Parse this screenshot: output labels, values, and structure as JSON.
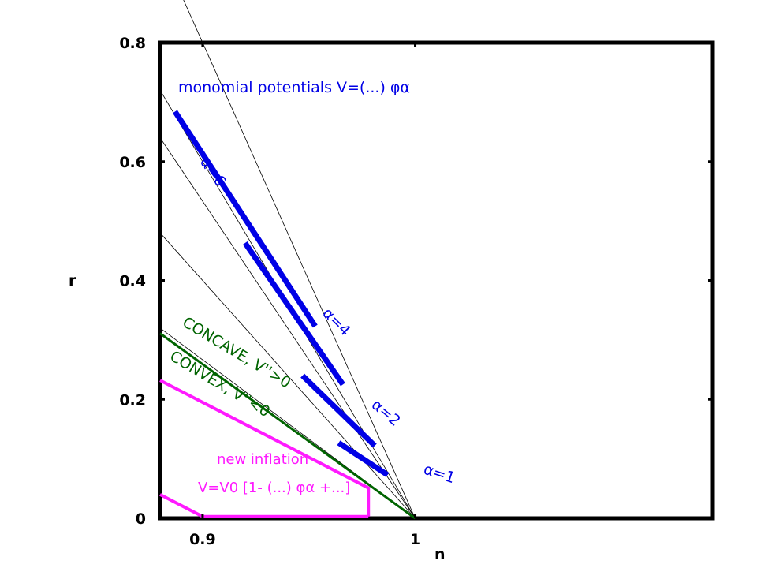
{
  "chart_data": {
    "type": "line",
    "xlabel": "n",
    "ylabel": "r",
    "xlim": [
      0.88,
      1.14
    ],
    "ylim": [
      0,
      0.8
    ],
    "x_ticks": [
      {
        "value": 0.9,
        "label": "0.9"
      },
      {
        "value": 1.0,
        "label": "1"
      }
    ],
    "y_ticks": [
      {
        "value": 0,
        "label": "0"
      },
      {
        "value": 0.2,
        "label": "0.2"
      },
      {
        "value": 0.4,
        "label": "0.4"
      },
      {
        "value": 0.6,
        "label": "0.6"
      },
      {
        "value": 0.8,
        "label": "0.8"
      }
    ],
    "grid": false,
    "annotations": {
      "monomial": "monomial potentials V=(...) φα",
      "alpha6": "α=6",
      "alpha4": "α=4",
      "alpha2": "α=2",
      "alpha1": "α=1",
      "concave": "CONCAVE, V''>0",
      "convex": "CONVEX, V''<0",
      "new_inflation_title": "new inflation",
      "new_inflation_formula": "V=V0 [1- (...) φα +...]"
    },
    "thin_lines": [
      {
        "name": "r=8(1-n)",
        "points": [
          [
            0.88,
            0.96
          ],
          [
            1.0,
            0
          ]
        ]
      },
      {
        "name": "α=6 line",
        "points": [
          [
            0.88,
            0.72
          ],
          [
            1.0,
            0
          ]
        ]
      },
      {
        "name": "α=4 line",
        "points": [
          [
            0.88,
            0.64
          ],
          [
            1.0,
            0
          ]
        ]
      },
      {
        "name": "α=2 line",
        "points": [
          [
            0.88,
            0.48
          ],
          [
            1.0,
            0
          ]
        ]
      },
      {
        "name": "α=1 line",
        "points": [
          [
            0.88,
            0.32
          ],
          [
            1.0,
            0
          ]
        ]
      }
    ],
    "series": [
      {
        "label_key": "alpha6",
        "color": "#0000e6",
        "points": [
          [
            0.887,
            0.684
          ],
          [
            0.953,
            0.323
          ]
        ]
      },
      {
        "label_key": "alpha4",
        "color": "#0000e6",
        "points": [
          [
            0.92,
            0.463
          ],
          [
            0.966,
            0.225
          ]
        ]
      },
      {
        "label_key": "alpha2",
        "color": "#0000e6",
        "points": [
          [
            0.947,
            0.24
          ],
          [
            0.981,
            0.122
          ]
        ]
      },
      {
        "label_key": "alpha1",
        "color": "#0000e6",
        "points": [
          [
            0.964,
            0.127
          ],
          [
            0.987,
            0.073
          ]
        ]
      }
    ],
    "boundary_line": {
      "color": "#006400",
      "points": [
        [
          0.88,
          0.311
        ],
        [
          1.0,
          0
        ]
      ]
    },
    "new_inflation_region": {
      "color": "#ff1aff",
      "upper_curve": [
        [
          0.88,
          0.232
        ],
        [
          0.978,
          0.051
        ],
        [
          0.978,
          0.003
        ]
      ],
      "lower_curve": [
        [
          0.88,
          0.04
        ],
        [
          0.9,
          0.003
        ],
        [
          0.978,
          0.003
        ]
      ]
    }
  }
}
